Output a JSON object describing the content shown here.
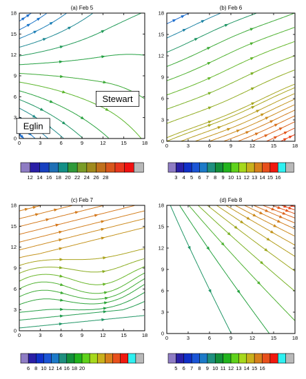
{
  "chart_data": [
    {
      "type": "streamline",
      "title": "(a) Feb 5",
      "xlim": [
        0,
        18
      ],
      "ylim": [
        0,
        18
      ],
      "xticks": [
        "0",
        "3",
        "6",
        "9",
        "12",
        "15",
        "18"
      ],
      "yticks": [
        "0",
        "3",
        "6",
        "9",
        "12",
        "15",
        "18"
      ],
      "colorbar": {
        "labels": [
          "12",
          "14",
          "16",
          "18",
          "20",
          "22",
          "24",
          "26",
          "28"
        ],
        "colors": [
          "#8e7cc3",
          "#2a1fa6",
          "#1740c0",
          "#1f6fb5",
          "#138f86",
          "#2f9a3a",
          "#7a9c28",
          "#a08a1e",
          "#c0701c",
          "#d8561c",
          "#e8361c",
          "#f01010",
          "#b8b8b8"
        ]
      },
      "annotations": [
        {
          "text": "Stewart",
          "x": 14.1,
          "y": 5.7
        },
        {
          "text": "Eglin",
          "x": 2.0,
          "y": 1.8
        }
      ]
    },
    {
      "type": "streamline",
      "title": "(b) Feb 6",
      "xlim": [
        0,
        18
      ],
      "ylim": [
        0,
        18
      ],
      "xticks": [
        "0",
        "3",
        "6",
        "9",
        "12",
        "15",
        "18"
      ],
      "yticks": [
        "0",
        "3",
        "6",
        "9",
        "12",
        "15",
        "18"
      ],
      "colorbar": {
        "labels": [
          "3",
          "4",
          "5",
          "6",
          "7",
          "8",
          "9",
          "10",
          "11",
          "12",
          "13",
          "14",
          "15",
          "16"
        ],
        "colors": [
          "#8e7cc3",
          "#2a1fa6",
          "#1030c8",
          "#1b55d6",
          "#1d7ac8",
          "#1f8f7f",
          "#138f3a",
          "#22b41e",
          "#5fd21c",
          "#a6d81c",
          "#c9b01c",
          "#d8801c",
          "#e8501c",
          "#f01a10",
          "#2ef0f0",
          "#b8b8b8"
        ]
      }
    },
    {
      "type": "streamline",
      "title": "(c) Feb 7",
      "xlim": [
        0,
        18
      ],
      "ylim": [
        0,
        18
      ],
      "xticks": [
        "0",
        "3",
        "6",
        "9",
        "12",
        "15",
        "18"
      ],
      "yticks": [
        "0",
        "3",
        "6",
        "9",
        "12",
        "15",
        "18"
      ],
      "colorbar": {
        "labels": [
          "6",
          "8",
          "10",
          "12",
          "14",
          "16",
          "18",
          "20"
        ],
        "colors": [
          "#8e7cc3",
          "#2a1fa6",
          "#1030c8",
          "#1b55d6",
          "#1d7ac8",
          "#1f8f7f",
          "#138f3a",
          "#22b41e",
          "#5fd21c",
          "#a6d81c",
          "#c9b01c",
          "#d8801c",
          "#e8501c",
          "#f01a10",
          "#2ef0f0",
          "#b8b8b8"
        ]
      }
    },
    {
      "type": "streamline",
      "title": "(d) Feb 8",
      "xlim": [
        0,
        18
      ],
      "ylim": [
        0,
        18
      ],
      "xticks": [
        "0",
        "3",
        "6",
        "9",
        "12",
        "15",
        "18"
      ],
      "yticks": [
        "0",
        "3",
        "6",
        "9",
        "12",
        "15",
        "18"
      ],
      "colorbar": {
        "labels": [
          "5",
          "6",
          "7",
          "8",
          "9",
          "10",
          "11",
          "12",
          "13",
          "14",
          "15",
          "16"
        ],
        "colors": [
          "#8e7cc3",
          "#2a1fa6",
          "#1030c8",
          "#1b55d6",
          "#1d7ac8",
          "#1f8f7f",
          "#138f3a",
          "#22b41e",
          "#5fd21c",
          "#a6d81c",
          "#c9b01c",
          "#d8801c",
          "#e8501c",
          "#f01a10",
          "#2ef0f0",
          "#b8b8b8"
        ]
      }
    }
  ]
}
